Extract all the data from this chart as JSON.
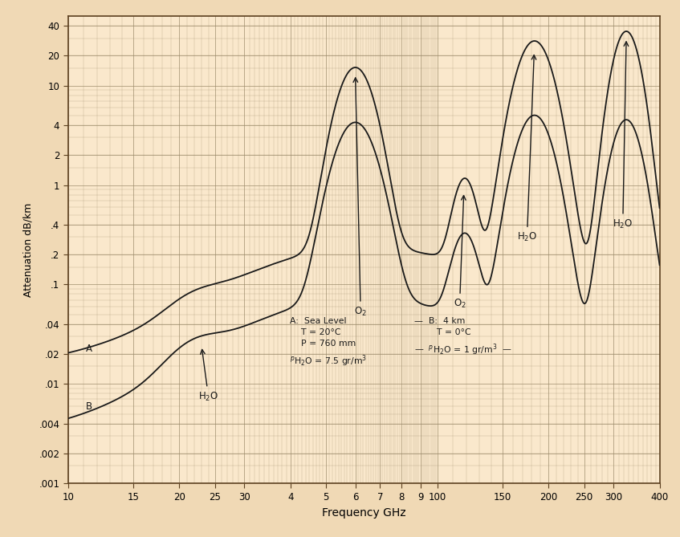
{
  "background_color": "#F0D9B5",
  "plot_bg_color": "#FAE8CC",
  "xlabel": "Frequency GHz",
  "ylabel": "Attenuation dB/km",
  "xticks": [
    10,
    15,
    20,
    25,
    30,
    40,
    50,
    60,
    70,
    80,
    90,
    100,
    150,
    200,
    250,
    300,
    400
  ],
  "xtick_labels": [
    "10",
    "15",
    "20",
    "25",
    "30",
    "4",
    "5",
    "6",
    "7",
    "8",
    "9",
    "100",
    "150",
    "200",
    "250",
    "300",
    "400"
  ],
  "yticks": [
    0.001,
    0.002,
    0.004,
    0.01,
    0.02,
    0.04,
    0.1,
    0.2,
    0.4,
    1.0,
    2.0,
    4.0,
    10.0,
    20.0,
    40.0
  ],
  "ytick_labels": [
    ".001",
    ".002",
    ".004",
    ".01",
    ".02",
    ".04",
    ".1",
    ".2",
    ".4",
    "1",
    "2",
    "4",
    "10",
    "20",
    "40"
  ],
  "line_color": "#1A1A1A",
  "grid_color": "#9B8A6A",
  "annotation_color": "#1A1A1A"
}
